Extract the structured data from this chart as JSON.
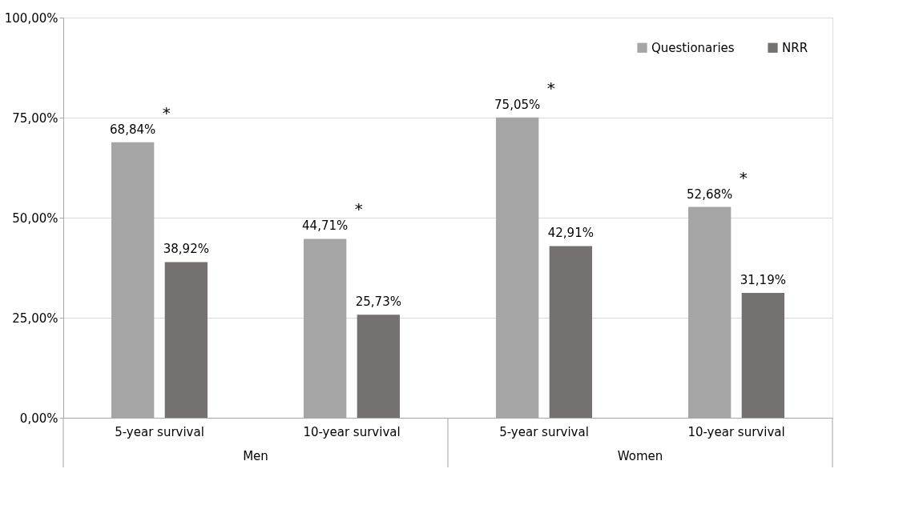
{
  "chart_data": {
    "type": "bar",
    "categories": [
      "5-year survival",
      "10-year survival",
      "5-year survival",
      "10-year survival"
    ],
    "series": [
      {
        "name": "Questionaries",
        "color": "#a5a5a5",
        "values": [
          68.84,
          44.71,
          75.05,
          52.68
        ],
        "value_labels": [
          "68,84%",
          "44,71%",
          "75,05%",
          "52,68%"
        ]
      },
      {
        "name": "NRR",
        "color": "#767171",
        "values": [
          38.92,
          25.73,
          42.91,
          31.19
        ],
        "value_labels": [
          "38,92%",
          "25,73%",
          "42,91%",
          "31,19%"
        ]
      }
    ],
    "ylim": [
      0,
      100
    ],
    "yticks": [
      {
        "value": 0,
        "label": "0,00%"
      },
      {
        "value": 25,
        "label": "25,00%"
      },
      {
        "value": 50,
        "label": "50,00%"
      },
      {
        "value": 75,
        "label": "75,00%"
      },
      {
        "value": 100,
        "label": "100,00%"
      }
    ],
    "grid": "y",
    "legend": "top right",
    "annotations": [
      "*",
      "*",
      "*",
      "*",
      "Men",
      "Women"
    ]
  }
}
